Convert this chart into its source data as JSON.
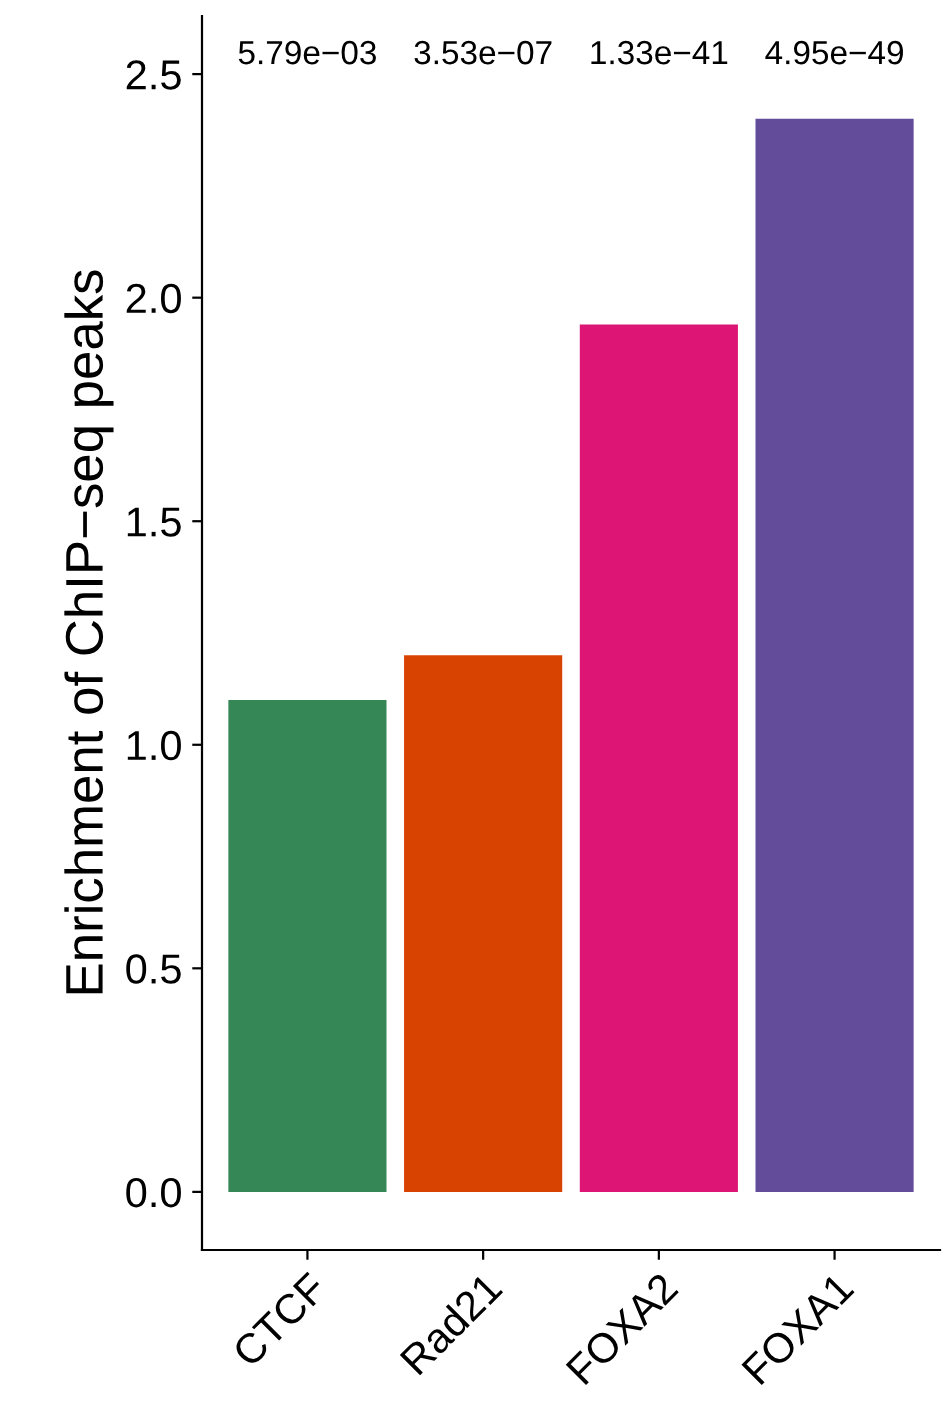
{
  "chart_data": {
    "type": "bar",
    "ylabel": "Enrichment of ChIP−seq peaks",
    "categories": [
      "CTCF",
      "Rad21",
      "FOXA2",
      "FOXA1"
    ],
    "values": [
      1.1,
      1.2,
      1.94,
      2.4
    ],
    "colors": [
      "#358856",
      "#d94301",
      "#dd1675",
      "#634d9b"
    ],
    "ylim": [
      -0.13,
      2.63
    ],
    "yticks": [
      {
        "value": 0,
        "label": "0.0"
      },
      0.5,
      {
        "value": 1,
        "label": "1.0"
      },
      1.5,
      {
        "value": 2,
        "label": "2.0"
      },
      2.5
    ],
    "annotations": [
      "5.79e−03",
      "3.53e−07",
      "1.33e−41",
      "4.95e−49"
    ],
    "grid": false
  }
}
